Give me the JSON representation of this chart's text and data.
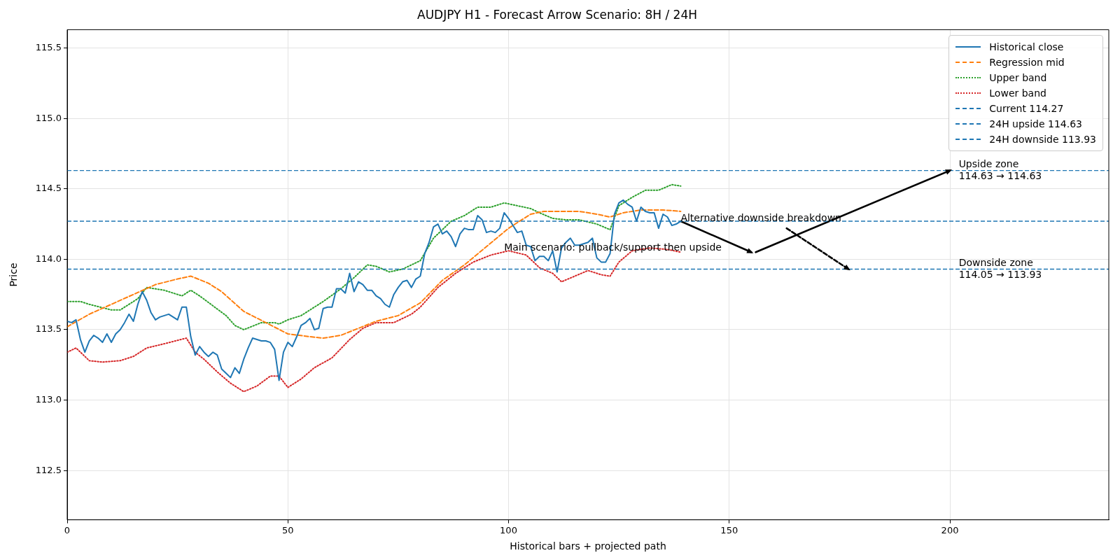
{
  "chart_data": {
    "type": "line",
    "title": "AUDJPY H1 - Forecast Arrow Scenario: 8H / 24H",
    "xlabel": "Historical bars + projected path",
    "ylabel": "Price",
    "xlim": [
      0,
      236
    ],
    "xticks": [
      0,
      50,
      100,
      150,
      200
    ],
    "ylim": [
      112.15,
      115.63
    ],
    "yticks": [
      {
        "value": 112.5,
        "label": "112.5"
      },
      {
        "value": 113,
        "label": "113.0"
      },
      {
        "value": 113.5,
        "label": "113.5"
      },
      {
        "value": 114,
        "label": "114.0"
      },
      {
        "value": 114.5,
        "label": "114.5"
      },
      {
        "value": 115,
        "label": "115.0"
      },
      {
        "value": 115.5,
        "label": "115.5"
      }
    ],
    "grid": true,
    "legend": "top right",
    "marker": "none",
    "series": [
      {
        "name": "Historical close",
        "color": "#1f77b4",
        "line_style": "solid",
        "x": [
          0,
          1,
          2,
          3,
          4,
          5,
          6,
          7,
          8,
          9,
          10,
          11,
          12,
          13,
          14,
          15,
          16,
          17,
          18,
          19,
          20,
          21,
          22,
          23,
          24,
          25,
          26,
          27,
          28,
          29,
          30,
          31,
          32,
          33,
          34,
          35,
          36,
          37,
          38,
          39,
          40,
          41,
          42,
          43,
          44,
          45,
          46,
          47,
          48,
          49,
          50,
          51,
          52,
          53,
          54,
          55,
          56,
          57,
          58,
          59,
          60,
          61,
          62,
          63,
          64,
          65,
          66,
          67,
          68,
          69,
          70,
          71,
          72,
          73,
          74,
          75,
          76,
          77,
          78,
          79,
          80,
          81,
          82,
          83,
          84,
          85,
          86,
          87,
          88,
          89,
          90,
          91,
          92,
          93,
          94,
          95,
          96,
          97,
          98,
          99,
          100,
          101,
          102,
          103,
          104,
          105,
          106,
          107,
          108,
          109,
          110,
          111,
          112,
          113,
          114,
          115,
          116,
          117,
          118,
          119,
          120,
          121,
          122,
          123,
          124,
          125,
          126,
          127,
          128,
          129,
          130,
          131,
          132,
          133,
          134,
          135,
          136,
          137,
          138,
          139
        ],
        "values": [
          113.56,
          113.55,
          113.57,
          113.43,
          113.34,
          113.42,
          113.46,
          113.44,
          113.41,
          113.47,
          113.41,
          113.47,
          113.5,
          113.55,
          113.61,
          113.56,
          113.68,
          113.77,
          113.71,
          113.62,
          113.57,
          113.59,
          113.6,
          113.61,
          113.59,
          113.57,
          113.66,
          113.66,
          113.45,
          113.32,
          113.38,
          113.34,
          113.31,
          113.34,
          113.32,
          113.22,
          113.19,
          113.16,
          113.23,
          113.19,
          113.29,
          113.37,
          113.44,
          113.43,
          113.42,
          113.42,
          113.41,
          113.36,
          113.14,
          113.34,
          113.41,
          113.38,
          113.45,
          113.53,
          113.55,
          113.58,
          113.5,
          113.51,
          113.65,
          113.66,
          113.66,
          113.79,
          113.79,
          113.76,
          113.9,
          113.77,
          113.84,
          113.82,
          113.78,
          113.78,
          113.74,
          113.72,
          113.68,
          113.66,
          113.75,
          113.8,
          113.84,
          113.85,
          113.8,
          113.86,
          113.88,
          114.04,
          114.12,
          114.23,
          114.25,
          114.18,
          114.2,
          114.16,
          114.09,
          114.18,
          114.22,
          114.21,
          114.21,
          114.31,
          114.28,
          114.19,
          114.2,
          114.19,
          114.22,
          114.33,
          114.29,
          114.24,
          114.19,
          114.2,
          114.1,
          114.09,
          113.99,
          114.02,
          114.02,
          113.99,
          114.06,
          113.91,
          114.08,
          114.12,
          114.15,
          114.1,
          114.1,
          114.11,
          114.12,
          114.15,
          114.01,
          113.98,
          113.98,
          114.04,
          114.32,
          114.4,
          114.42,
          114.39,
          114.37,
          114.27,
          114.37,
          114.34,
          114.33,
          114.33,
          114.22,
          114.32,
          114.3,
          114.24,
          114.25,
          114.27
        ]
      },
      {
        "name": "Regression mid",
        "color": "#ff7f0e",
        "line_style": "dashed",
        "x": [
          0,
          5,
          10,
          15,
          20,
          25,
          28,
          32,
          35,
          40,
          45,
          50,
          55,
          58,
          62,
          66,
          70,
          75,
          80,
          85,
          90,
          95,
          100,
          105,
          108,
          112,
          116,
          120,
          123,
          126,
          130,
          135,
          139
        ],
        "values": [
          113.52,
          113.61,
          113.68,
          113.75,
          113.82,
          113.86,
          113.88,
          113.83,
          113.77,
          113.63,
          113.55,
          113.47,
          113.45,
          113.44,
          113.46,
          113.51,
          113.56,
          113.6,
          113.69,
          113.85,
          113.96,
          114.09,
          114.22,
          114.32,
          114.34,
          114.34,
          114.34,
          114.32,
          114.3,
          114.33,
          114.35,
          114.35,
          114.34
        ]
      },
      {
        "name": "Upper band",
        "color": "#2ca02c",
        "line_style": "dotted",
        "x": [
          0,
          3,
          5,
          10,
          12,
          16,
          18,
          22,
          26,
          28,
          30,
          33,
          36,
          38,
          40,
          44,
          47,
          48,
          50,
          53,
          56,
          58,
          62,
          65,
          68,
          70,
          73,
          76,
          80,
          83,
          87,
          90,
          93,
          96,
          99,
          102,
          105,
          107,
          110,
          113,
          116,
          120,
          123,
          125,
          128,
          131,
          134,
          137,
          139
        ],
        "values": [
          113.7,
          113.7,
          113.68,
          113.64,
          113.64,
          113.72,
          113.8,
          113.78,
          113.74,
          113.78,
          113.74,
          113.67,
          113.6,
          113.53,
          113.5,
          113.55,
          113.55,
          113.54,
          113.57,
          113.6,
          113.66,
          113.7,
          113.79,
          113.87,
          113.96,
          113.95,
          113.91,
          113.93,
          113.99,
          114.15,
          114.27,
          114.31,
          114.37,
          114.37,
          114.4,
          114.38,
          114.36,
          114.33,
          114.29,
          114.28,
          114.28,
          114.25,
          114.21,
          114.38,
          114.44,
          114.49,
          114.49,
          114.53,
          114.52
        ]
      },
      {
        "name": "Lower band",
        "color": "#d62728",
        "line_style": "dotted",
        "x": [
          0,
          2,
          5,
          8,
          12,
          15,
          18,
          22,
          27,
          29,
          31,
          34,
          37,
          40,
          43,
          46,
          48,
          50,
          53,
          56,
          60,
          64,
          67,
          70,
          74,
          78,
          80,
          84,
          88,
          92,
          96,
          100,
          104,
          107,
          110,
          112,
          115,
          118,
          121,
          123,
          125,
          128,
          132,
          136,
          139
        ],
        "values": [
          113.34,
          113.37,
          113.28,
          113.27,
          113.28,
          113.31,
          113.37,
          113.4,
          113.44,
          113.34,
          113.29,
          113.2,
          113.12,
          113.06,
          113.1,
          113.17,
          113.17,
          113.09,
          113.15,
          113.23,
          113.3,
          113.43,
          113.51,
          113.55,
          113.55,
          113.61,
          113.66,
          113.8,
          113.9,
          113.98,
          114.03,
          114.06,
          114.03,
          113.94,
          113.9,
          113.84,
          113.88,
          113.92,
          113.89,
          113.88,
          113.98,
          114.06,
          114.08,
          114.07,
          114.05
        ]
      },
      {
        "color": "#000000",
        "line_style": "solid",
        "marker": "triangle",
        "x": [
          139,
          155
        ],
        "values": [
          114.27,
          114.05
        ]
      },
      {
        "color": "#000000",
        "line_style": "solid",
        "marker": "triangle",
        "x": [
          156,
          200
        ],
        "values": [
          114.05,
          114.63
        ]
      },
      {
        "color": "#000000",
        "line_style": "dashed",
        "marker": "triangle",
        "x": [
          163,
          177
        ],
        "values": [
          114.22,
          113.93
        ]
      }
    ],
    "ref_lines": [
      {
        "axis": "y",
        "value": 114.27,
        "label": "Current 114.27",
        "color": "#1f77b4",
        "line_style": "dashed"
      },
      {
        "axis": "y",
        "value": 114.63,
        "label": "24H upside 114.63",
        "color": "#1f77b4",
        "line_style": "dashed"
      },
      {
        "axis": "y",
        "value": 113.93,
        "label": "24H downside 113.93",
        "color": "#1f77b4",
        "line_style": "dashed"
      }
    ],
    "annotations": [
      {
        "text": "Main scenario: pullback/support then upside",
        "x": 99,
        "y": 114.08
      },
      {
        "text": "Alternative downside breakdown",
        "x": 139,
        "y": 114.29
      },
      {
        "text": "Upside zone\n114.63 → 114.63",
        "x": 202,
        "y": 114.63
      },
      {
        "text": "Downside zone\n114.05 → 113.93",
        "x": 202,
        "y": 113.93
      }
    ]
  }
}
